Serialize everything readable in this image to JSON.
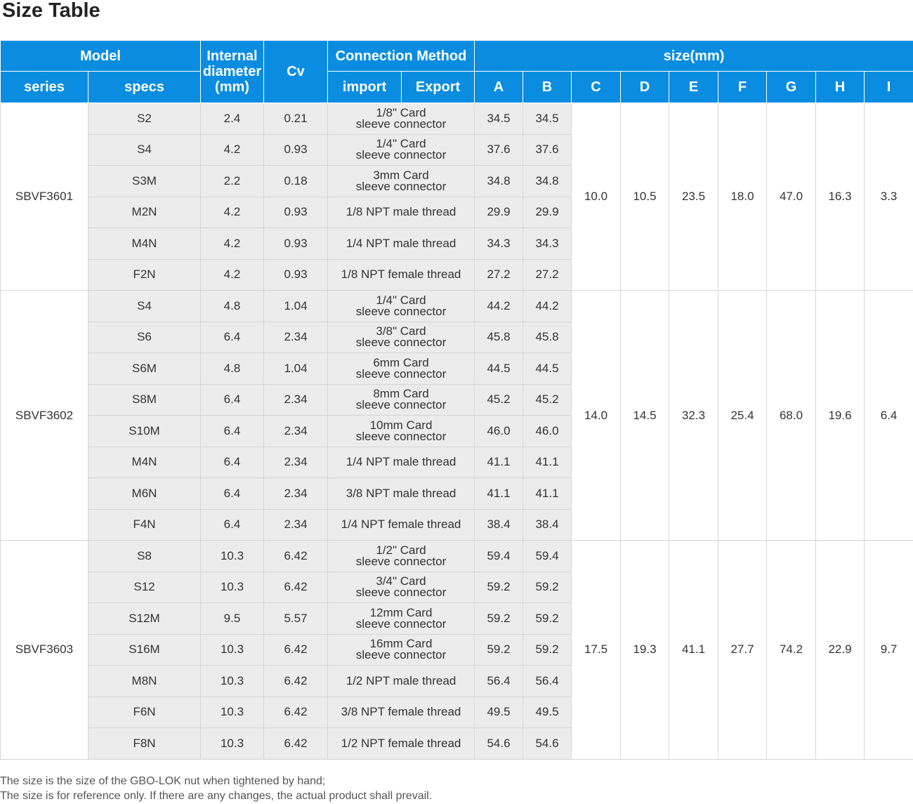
{
  "title": "Size Table",
  "headers": {
    "model": "Model",
    "internal_diameter": "Internal diameter (mm)",
    "cv": "Cv",
    "connection_method": "Connection Method",
    "size": "size(mm)",
    "series": "series",
    "specs": "specs",
    "import": "import",
    "export": "Export",
    "dims": [
      "A",
      "B",
      "C",
      "D",
      "E",
      "F",
      "G",
      "H",
      "I"
    ]
  },
  "groups": [
    {
      "series": "SBVF3601",
      "shared": [
        "10.0",
        "10.5",
        "23.5",
        "18.0",
        "47.0",
        "16.3",
        "3.3"
      ],
      "rows": [
        {
          "spec": "S2",
          "diameter": "2.4",
          "cv": "0.21",
          "conn": [
            "1/8\" Card",
            "sleeve connector"
          ],
          "a": "34.5",
          "b": "34.5"
        },
        {
          "spec": "S4",
          "diameter": "4.2",
          "cv": "0.93",
          "conn": [
            "1/4\" Card",
            "sleeve connector"
          ],
          "a": "37.6",
          "b": "37.6"
        },
        {
          "spec": "S3M",
          "diameter": "2.2",
          "cv": "0.18",
          "conn": [
            "3mm Card",
            "sleeve connector"
          ],
          "a": "34.8",
          "b": "34.8"
        },
        {
          "spec": "M2N",
          "diameter": "4.2",
          "cv": "0.93",
          "conn": [
            "1/8 NPT male thread"
          ],
          "a": "29.9",
          "b": "29.9"
        },
        {
          "spec": "M4N",
          "diameter": "4.2",
          "cv": "0.93",
          "conn": [
            "1/4 NPT male thread"
          ],
          "a": "34.3",
          "b": "34.3"
        },
        {
          "spec": "F2N",
          "diameter": "4.2",
          "cv": "0.93",
          "conn": [
            "1/8 NPT female thread"
          ],
          "a": "27.2",
          "b": "27.2"
        }
      ]
    },
    {
      "series": "SBVF3602",
      "shared": [
        "14.0",
        "14.5",
        "32.3",
        "25.4",
        "68.0",
        "19.6",
        "6.4"
      ],
      "rows": [
        {
          "spec": "S4",
          "diameter": "4.8",
          "cv": "1.04",
          "conn": [
            "1/4\" Card",
            "sleeve connector"
          ],
          "a": "44.2",
          "b": "44.2"
        },
        {
          "spec": "S6",
          "diameter": "6.4",
          "cv": "2.34",
          "conn": [
            "3/8\" Card",
            "sleeve connector"
          ],
          "a": "45.8",
          "b": "45.8"
        },
        {
          "spec": "S6M",
          "diameter": "4.8",
          "cv": "1.04",
          "conn": [
            "6mm Card",
            "sleeve connector"
          ],
          "a": "44.5",
          "b": "44.5"
        },
        {
          "spec": "S8M",
          "diameter": "6.4",
          "cv": "2.34",
          "conn": [
            "8mm Card",
            "sleeve connector"
          ],
          "a": "45.2",
          "b": "45.2"
        },
        {
          "spec": "S10M",
          "diameter": "6.4",
          "cv": "2.34",
          "conn": [
            "10mm Card",
            "sleeve connector"
          ],
          "a": "46.0",
          "b": "46.0"
        },
        {
          "spec": "M4N",
          "diameter": "6.4",
          "cv": "2.34",
          "conn": [
            "1/4 NPT male thread"
          ],
          "a": "41.1",
          "b": "41.1"
        },
        {
          "spec": "M6N",
          "diameter": "6.4",
          "cv": "2.34",
          "conn": [
            "3/8 NPT male thread"
          ],
          "a": "41.1",
          "b": "41.1"
        },
        {
          "spec": "F4N",
          "diameter": "6.4",
          "cv": "2.34",
          "conn": [
            "1/4 NPT female thread"
          ],
          "a": "38.4",
          "b": "38.4"
        }
      ]
    },
    {
      "series": "SBVF3603",
      "shared": [
        "17.5",
        "19.3",
        "41.1",
        "27.7",
        "74.2",
        "22.9",
        "9.7"
      ],
      "rows": [
        {
          "spec": "S8",
          "diameter": "10.3",
          "cv": "6.42",
          "conn": [
            "1/2\" Card",
            "sleeve connector"
          ],
          "a": "59.4",
          "b": "59.4"
        },
        {
          "spec": "S12",
          "diameter": "10.3",
          "cv": "6.42",
          "conn": [
            "3/4\" Card",
            "sleeve connector"
          ],
          "a": "59.2",
          "b": "59.2"
        },
        {
          "spec": "S12M",
          "diameter": "9.5",
          "cv": "5.57",
          "conn": [
            "12mm Card",
            "sleeve connector"
          ],
          "a": "59.2",
          "b": "59.2"
        },
        {
          "spec": "S16M",
          "diameter": "10.3",
          "cv": "6.42",
          "conn": [
            "16mm Card",
            "sleeve connector"
          ],
          "a": "59.2",
          "b": "59.2"
        },
        {
          "spec": "M8N",
          "diameter": "10.3",
          "cv": "6.42",
          "conn": [
            "1/2 NPT male thread"
          ],
          "a": "56.4",
          "b": "56.4"
        },
        {
          "spec": "F6N",
          "diameter": "10.3",
          "cv": "6.42",
          "conn": [
            "3/8 NPT female thread"
          ],
          "a": "49.5",
          "b": "49.5"
        },
        {
          "spec": "F8N",
          "diameter": "10.3",
          "cv": "6.42",
          "conn": [
            "1/2 NPT female thread"
          ],
          "a": "54.6",
          "b": "54.6"
        }
      ]
    }
  ],
  "notes": [
    "The size is the size of the GBO-LOK nut when tightened by hand;",
    "The size is for reference only. If there are any changes, the actual product shall prevail."
  ]
}
